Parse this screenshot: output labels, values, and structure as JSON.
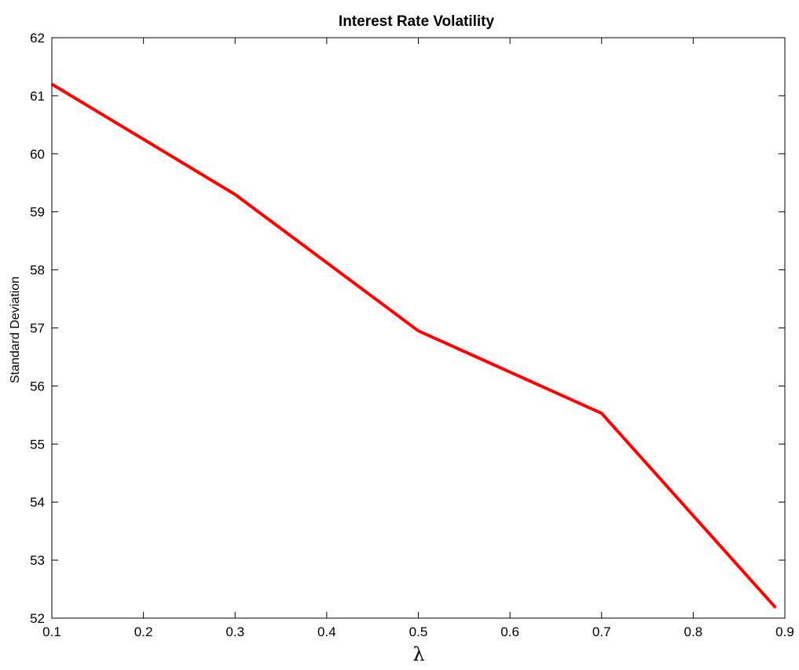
{
  "chart_data": {
    "type": "line",
    "title": "Interest Rate Volatility",
    "xlabel": "λ",
    "ylabel": "Standard Deviation",
    "xlim": [
      0.1,
      0.9
    ],
    "ylim": [
      52,
      62
    ],
    "xticks": [
      0.1,
      0.2,
      0.3,
      0.4,
      0.5,
      0.6,
      0.7,
      0.8,
      0.9
    ],
    "xtick_labels": [
      "0.1",
      "0.2",
      "0.3",
      "0.4",
      "0.5",
      "0.6",
      "0.7",
      "0.8",
      "0.9"
    ],
    "yticks": [
      52,
      53,
      54,
      55,
      56,
      57,
      58,
      59,
      60,
      61,
      62
    ],
    "ytick_labels": [
      "52",
      "53",
      "54",
      "55",
      "56",
      "57",
      "58",
      "59",
      "60",
      "61",
      "62"
    ],
    "grid": false,
    "series": [
      {
        "color": "#ff0000",
        "x": [
          0.1,
          0.3,
          0.5,
          0.7,
          0.89
        ],
        "y": [
          61.2,
          59.3,
          56.95,
          55.53,
          52.18
        ]
      }
    ]
  }
}
